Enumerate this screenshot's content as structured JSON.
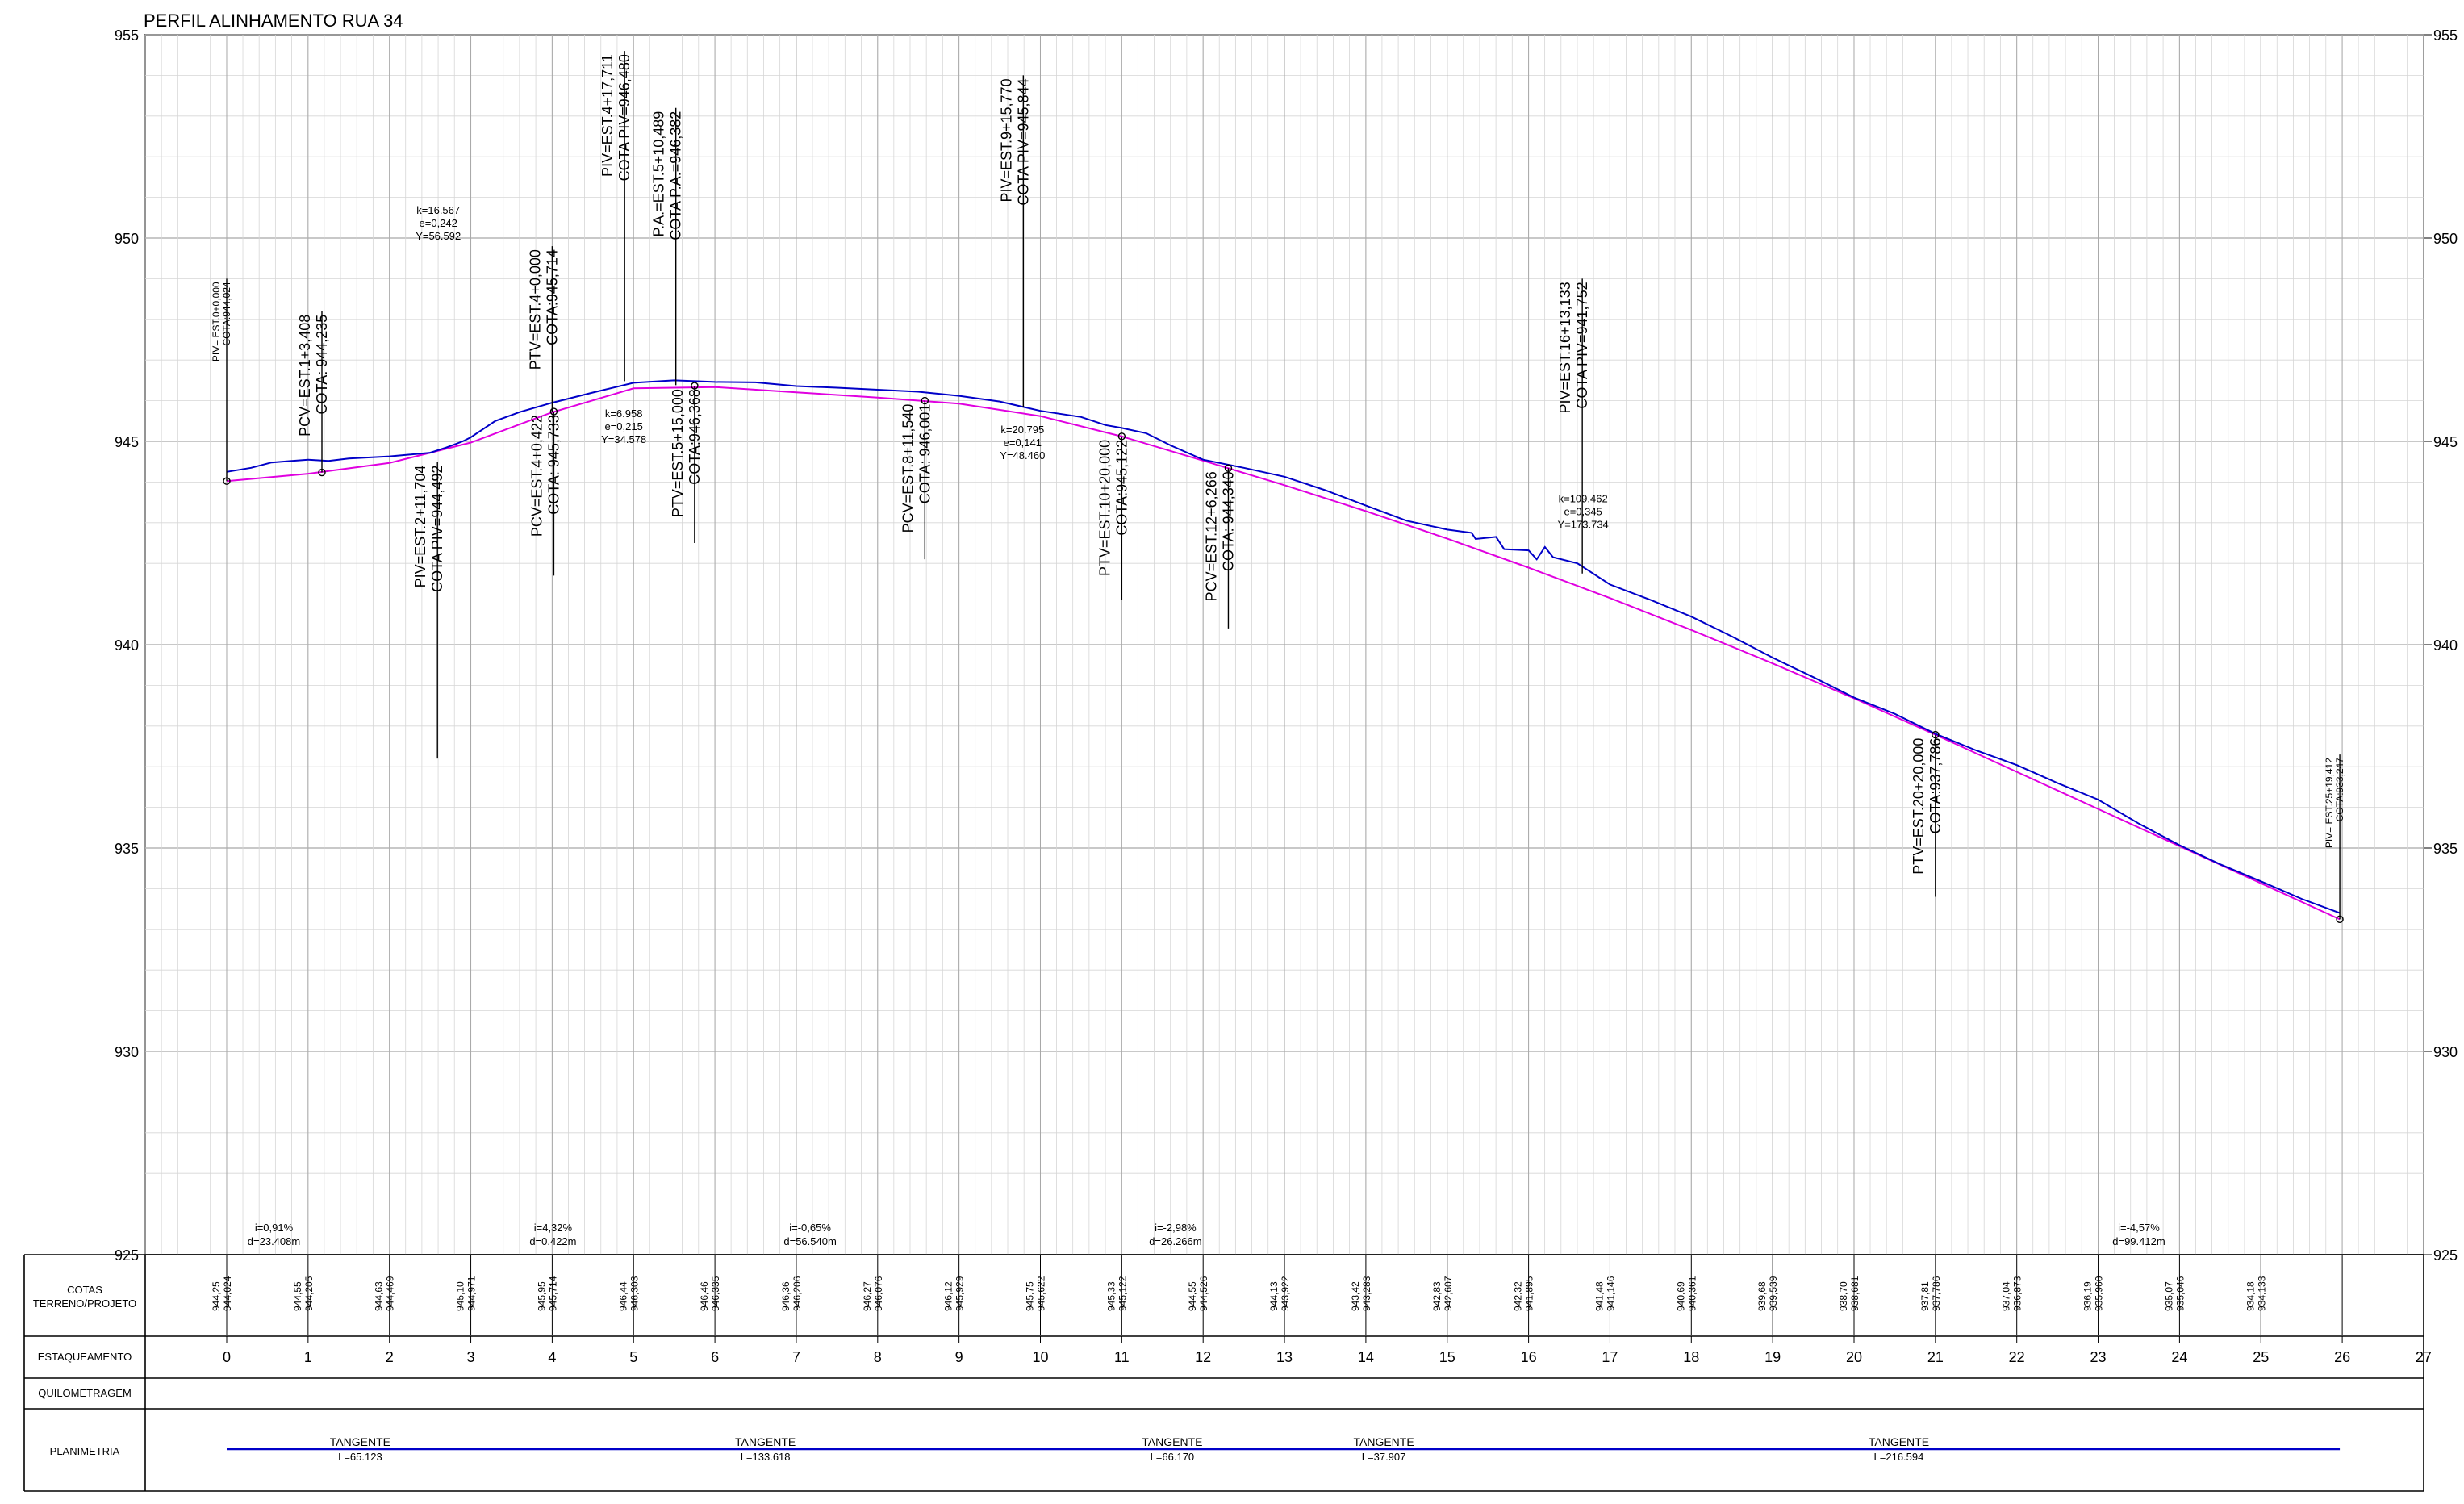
{
  "title": "PERFIL ALINHAMENTO RUA 34",
  "colors": {
    "terrain": "#0000c8",
    "project": "#e000e0",
    "minor_grid": "#d6d6d6",
    "major_grid": "#a8a8a8",
    "ink": "#000000"
  },
  "axis": {
    "elev_min": 925,
    "elev_max": 955,
    "elev_labels": [
      "955",
      "950",
      "945",
      "940",
      "935",
      "930",
      "925"
    ],
    "station_min": 0,
    "station_max": 27
  },
  "stations": [
    "0",
    "1",
    "2",
    "3",
    "4",
    "5",
    "6",
    "7",
    "8",
    "9",
    "10",
    "11",
    "12",
    "13",
    "14",
    "15",
    "16",
    "17",
    "18",
    "19",
    "20",
    "21",
    "22",
    "23",
    "24",
    "25",
    "26",
    "27"
  ],
  "table": {
    "row_labels": {
      "cotas_line1": "COTAS",
      "cotas_line2": "TERRENO/PROJETO",
      "estaqueamento": "ESTAQUEAMENTO",
      "quilometragem": "QUILOMETRAGEM",
      "planimetria": "PLANIMETRIA"
    },
    "cotas": [
      {
        "station": 0,
        "terreno": "944,25",
        "projeto": "944,024"
      },
      {
        "station": 1,
        "terreno": "944,55",
        "projeto": "944,205"
      },
      {
        "station": 2,
        "terreno": "944,63",
        "projeto": "944,469"
      },
      {
        "station": 3,
        "terreno": "945,10",
        "projeto": "944,971"
      },
      {
        "station": 4,
        "terreno": "945,95",
        "projeto": "945,714"
      },
      {
        "station": 5,
        "terreno": "946,44",
        "projeto": "946,303"
      },
      {
        "station": 6,
        "terreno": "946,46",
        "projeto": "946,335"
      },
      {
        "station": 7,
        "terreno": "946,36",
        "projeto": "946,206"
      },
      {
        "station": 8,
        "terreno": "946,27",
        "projeto": "946,076"
      },
      {
        "station": 9,
        "terreno": "946,12",
        "projeto": "945,929"
      },
      {
        "station": 10,
        "terreno": "945,75",
        "projeto": "945,622"
      },
      {
        "station": 11,
        "terreno": "945,33",
        "projeto": "945,122"
      },
      {
        "station": 12,
        "terreno": "944,55",
        "projeto": "944,526"
      },
      {
        "station": 13,
        "terreno": "944,13",
        "projeto": "943,922"
      },
      {
        "station": 14,
        "terreno": "943,42",
        "projeto": "943,283"
      },
      {
        "station": 15,
        "terreno": "942,83",
        "projeto": "942,607"
      },
      {
        "station": 16,
        "terreno": "942,32",
        "projeto": "941,895"
      },
      {
        "station": 17,
        "terreno": "941,48",
        "projeto": "941,146"
      },
      {
        "station": 18,
        "terreno": "940,69",
        "projeto": "940,361"
      },
      {
        "station": 19,
        "terreno": "939,68",
        "projeto": "939,539"
      },
      {
        "station": 20,
        "terreno": "938,70",
        "projeto": "938,681"
      },
      {
        "station": 21,
        "terreno": "937,81",
        "projeto": "937,786"
      },
      {
        "station": 22,
        "terreno": "937,04",
        "projeto": "936,873"
      },
      {
        "station": 23,
        "terreno": "936,19",
        "projeto": "935,960"
      },
      {
        "station": 24,
        "terreno": "935,07",
        "projeto": "935,046"
      },
      {
        "station": 25,
        "terreno": "934,18",
        "projeto": "934,133"
      }
    ],
    "planimetria": [
      {
        "label": "TANGENTE",
        "length": "L=65.123",
        "station": 1.64
      },
      {
        "label": "TANGENTE",
        "length": "L=133.618",
        "station": 6.62
      },
      {
        "label": "TANGENTE",
        "length": "L=66.170",
        "station": 11.62
      },
      {
        "label": "TANGENTE",
        "length": "L=37.907",
        "station": 14.22
      },
      {
        "label": "TANGENTE",
        "length": "L=216.594",
        "station": 20.55
      }
    ],
    "planimetria_line": {
      "start_station": 0,
      "end_station": 25.97
    }
  },
  "grades": [
    {
      "i": "i=0,91%",
      "d": "d=23.408m",
      "station": 0.58
    },
    {
      "i": "i=4,32%",
      "d": "d=0.422m",
      "station": 4.01
    },
    {
      "i": "i=-0,65%",
      "d": "d=56.540m",
      "station": 7.17
    },
    {
      "i": "i=-2,98%",
      "d": "d=26.266m",
      "station": 11.66
    },
    {
      "i": "i=-4,57%",
      "d": "d=99.412m",
      "station": 23.5
    }
  ],
  "curve_params": [
    {
      "lines": [
        "k=16.567",
        "e=0,242",
        "Y=56.592"
      ],
      "station": 2.6,
      "elev": 950.6
    },
    {
      "lines": [
        "k=6.958",
        "e=0,215",
        "Y=34.578"
      ],
      "station": 4.88,
      "elev": 945.6
    },
    {
      "lines": [
        "k=20.795",
        "e=0,141",
        "Y=48.460"
      ],
      "station": 9.78,
      "elev": 945.2
    },
    {
      "lines": [
        "k=109.462",
        "e=0,345",
        "Y=173.734"
      ],
      "station": 16.67,
      "elev": 943.5
    }
  ],
  "vertical_points": [
    {
      "lines": [
        "PIV= EST.0+0,000",
        "COTA:944,024"
      ],
      "station": 0,
      "elev": 944.024,
      "top": 949.0,
      "bottom": 944.024,
      "small": true,
      "marker": true
    },
    {
      "lines": [
        "PCV=EST.1+3,408",
        "COTA: 944,235"
      ],
      "station": 1.17,
      "elev": 944.235,
      "top": 948.2,
      "bottom": 944.235,
      "small": false,
      "marker": true
    },
    {
      "lines": [
        "PIV=EST.2+11,704",
        "COTA PIV=944,492"
      ],
      "station": 2.59,
      "elev": 944.492,
      "top": 944.492,
      "bottom": 937.2,
      "small": false,
      "marker": false
    },
    {
      "lines": [
        "PTV=EST.4+0,000",
        "COTA:945,714"
      ],
      "station": 4.0,
      "elev": 945.714,
      "top": 949.8,
      "bottom": 945.714,
      "small": false,
      "marker": false
    },
    {
      "lines": [
        "PCV=EST.4+0,422",
        "COTA: 945,733"
      ],
      "station": 4.02,
      "elev": 945.733,
      "top": 945.733,
      "bottom": 941.7,
      "small": false,
      "marker": true
    },
    {
      "lines": [
        "PIV=EST.4+17,711",
        "COTA PIV=946,480"
      ],
      "station": 4.89,
      "elev": 946.48,
      "top": 954.6,
      "bottom": 946.48,
      "small": false,
      "marker": false
    },
    {
      "lines": [
        "P.A.=EST.5+10,489",
        "COTA P.A.=946,382"
      ],
      "station": 5.52,
      "elev": 946.382,
      "top": 953.2,
      "bottom": 946.382,
      "small": false,
      "marker": false
    },
    {
      "lines": [
        "PTV=EST.5+15,000",
        "COTA:946,368"
      ],
      "station": 5.75,
      "elev": 946.368,
      "top": 946.368,
      "bottom": 942.5,
      "small": false,
      "marker": true
    },
    {
      "lines": [
        "PCV=EST.8+11,540",
        "COTA: 946,001"
      ],
      "station": 8.58,
      "elev": 946.001,
      "top": 946.001,
      "bottom": 942.1,
      "small": false,
      "marker": true
    },
    {
      "lines": [
        "PIV=EST.9+15,770",
        "COTA PIV=945,844"
      ],
      "station": 9.79,
      "elev": 945.844,
      "top": 954.0,
      "bottom": 945.844,
      "small": false,
      "marker": false
    },
    {
      "lines": [
        "PTV=EST.10+20,000",
        "COTA:945,122"
      ],
      "station": 11.0,
      "elev": 945.122,
      "top": 945.122,
      "bottom": 941.1,
      "small": false,
      "marker": true
    },
    {
      "lines": [
        "PCV=EST.12+6,266",
        "COTA: 944,340"
      ],
      "station": 12.31,
      "elev": 944.34,
      "top": 944.34,
      "bottom": 940.4,
      "small": false,
      "marker": true
    },
    {
      "lines": [
        "PIV=EST.16+13,133",
        "COTA PIV=941,752"
      ],
      "station": 16.66,
      "elev": 941.752,
      "top": 949.0,
      "bottom": 941.752,
      "small": false,
      "marker": false
    },
    {
      "lines": [
        "PTV=EST.20+20,000",
        "COTA:937,786"
      ],
      "station": 21.0,
      "elev": 937.786,
      "top": 937.786,
      "bottom": 933.8,
      "small": false,
      "marker": true
    },
    {
      "lines": [
        "PIV= EST.25+19,412",
        "COTA:933,247"
      ],
      "station": 25.97,
      "elev": 933.247,
      "top": 937.3,
      "bottom": 933.247,
      "small": true,
      "marker": true
    }
  ],
  "terrain_profile": [
    [
      0,
      944.25
    ],
    [
      0.3,
      944.35
    ],
    [
      0.55,
      944.48
    ],
    [
      0.8,
      944.52
    ],
    [
      1.0,
      944.55
    ],
    [
      1.25,
      944.52
    ],
    [
      1.5,
      944.58
    ],
    [
      2.0,
      944.63
    ],
    [
      2.5,
      944.72
    ],
    [
      2.7,
      944.85
    ],
    [
      2.9,
      945.0
    ],
    [
      3.0,
      945.1
    ],
    [
      3.3,
      945.5
    ],
    [
      3.6,
      945.72
    ],
    [
      4.0,
      945.95
    ],
    [
      4.5,
      946.2
    ],
    [
      5.0,
      946.44
    ],
    [
      5.5,
      946.5
    ],
    [
      6.0,
      946.46
    ],
    [
      6.5,
      946.45
    ],
    [
      7.0,
      946.36
    ],
    [
      7.5,
      946.32
    ],
    [
      8.0,
      946.27
    ],
    [
      8.5,
      946.22
    ],
    [
      9.0,
      946.12
    ],
    [
      9.5,
      945.98
    ],
    [
      10.0,
      945.75
    ],
    [
      10.5,
      945.6
    ],
    [
      10.8,
      945.4
    ],
    [
      11.0,
      945.33
    ],
    [
      11.3,
      945.2
    ],
    [
      11.6,
      944.9
    ],
    [
      12.0,
      944.55
    ],
    [
      12.5,
      944.35
    ],
    [
      13.0,
      944.13
    ],
    [
      13.5,
      943.8
    ],
    [
      14.0,
      943.42
    ],
    [
      14.5,
      943.05
    ],
    [
      15.0,
      942.83
    ],
    [
      15.3,
      942.75
    ],
    [
      15.35,
      942.6
    ],
    [
      15.6,
      942.65
    ],
    [
      15.7,
      942.35
    ],
    [
      16.0,
      942.32
    ],
    [
      16.1,
      942.1
    ],
    [
      16.2,
      942.4
    ],
    [
      16.3,
      942.15
    ],
    [
      16.6,
      942.0
    ],
    [
      17.0,
      941.48
    ],
    [
      17.5,
      941.1
    ],
    [
      18.0,
      940.69
    ],
    [
      18.5,
      940.2
    ],
    [
      19.0,
      939.68
    ],
    [
      19.5,
      939.2
    ],
    [
      20.0,
      938.7
    ],
    [
      20.5,
      938.3
    ],
    [
      21.0,
      937.81
    ],
    [
      21.5,
      937.4
    ],
    [
      22.0,
      937.04
    ],
    [
      22.5,
      936.6
    ],
    [
      23.0,
      936.19
    ],
    [
      23.5,
      935.6
    ],
    [
      24.0,
      935.07
    ],
    [
      24.5,
      934.6
    ],
    [
      25.0,
      934.18
    ],
    [
      25.5,
      933.75
    ],
    [
      25.97,
      933.4
    ]
  ],
  "project_profile": [
    [
      0,
      944.024
    ],
    [
      1.0,
      944.205
    ],
    [
      2.0,
      944.469
    ],
    [
      3.0,
      944.971
    ],
    [
      4.0,
      945.714
    ],
    [
      5.0,
      946.303
    ],
    [
      6.0,
      946.335
    ],
    [
      7.0,
      946.206
    ],
    [
      8.0,
      946.076
    ],
    [
      9.0,
      945.929
    ],
    [
      10.0,
      945.622
    ],
    [
      11.0,
      945.122
    ],
    [
      12.0,
      944.526
    ],
    [
      13.0,
      943.922
    ],
    [
      14.0,
      943.283
    ],
    [
      15.0,
      942.607
    ],
    [
      16.0,
      941.895
    ],
    [
      17.0,
      941.146
    ],
    [
      18.0,
      940.361
    ],
    [
      19.0,
      939.539
    ],
    [
      20.0,
      938.681
    ],
    [
      21.0,
      937.786
    ],
    [
      22.0,
      936.873
    ],
    [
      23.0,
      935.96
    ],
    [
      24.0,
      935.046
    ],
    [
      25.0,
      934.133
    ],
    [
      25.97,
      933.247
    ]
  ]
}
